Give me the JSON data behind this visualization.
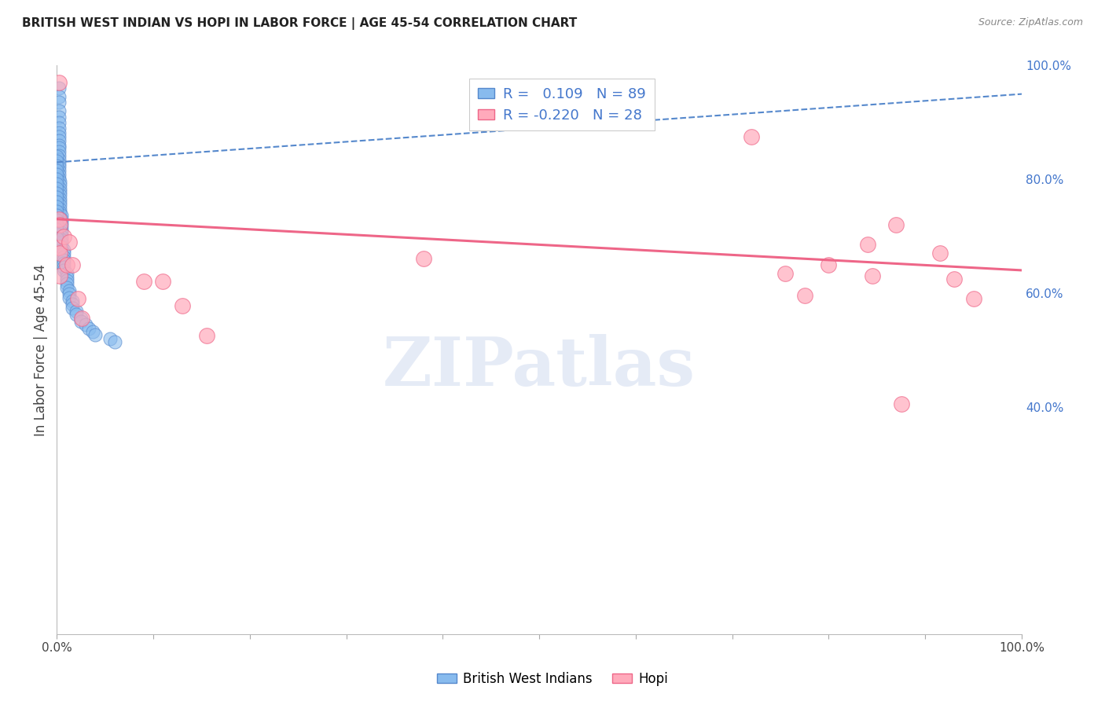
{
  "title": "BRITISH WEST INDIAN VS HOPI IN LABOR FORCE | AGE 45-54 CORRELATION CHART",
  "source": "Source: ZipAtlas.com",
  "ylabel": "In Labor Force | Age 45-54",
  "xlim": [
    0.0,
    1.0
  ],
  "ylim": [
    0.0,
    1.0
  ],
  "x_ticks": [
    0.0,
    0.1,
    0.2,
    0.3,
    0.4,
    0.5,
    0.6,
    0.7,
    0.8,
    0.9,
    1.0
  ],
  "y_ticks": [
    0.0,
    0.1,
    0.2,
    0.3,
    0.4,
    0.5,
    0.6,
    0.7,
    0.8,
    0.9,
    1.0
  ],
  "x_tick_labels": [
    "0.0%",
    "",
    "",
    "",
    "",
    "",
    "",
    "",
    "",
    "",
    "100.0%"
  ],
  "y_tick_labels_right": [
    "",
    "",
    "",
    "",
    "40.0%",
    "",
    "60.0%",
    "",
    "80.0%",
    "",
    "100.0%"
  ],
  "blue_color": "#88BBEE",
  "pink_color": "#FFAABB",
  "blue_edge_color": "#5588CC",
  "pink_edge_color": "#EE6688",
  "blue_line_color": "#5588CC",
  "pink_line_color": "#EE6688",
  "legend_R_blue": " 0.109",
  "legend_N_blue": "89",
  "legend_R_pink": "-0.220",
  "legend_N_pink": "28",
  "legend_label_blue": "British West Indians",
  "legend_label_pink": "Hopi",
  "watermark": "ZIPatlas",
  "blue_scatter_x": [
    0.002,
    0.002,
    0.002,
    0.002,
    0.002,
    0.002,
    0.002,
    0.002,
    0.002,
    0.002,
    0.002,
    0.002,
    0.002,
    0.002,
    0.002,
    0.002,
    0.002,
    0.002,
    0.002,
    0.002,
    0.003,
    0.003,
    0.003,
    0.003,
    0.003,
    0.003,
    0.003,
    0.003,
    0.003,
    0.003,
    0.005,
    0.005,
    0.005,
    0.005,
    0.005,
    0.005,
    0.005,
    0.005,
    0.005,
    0.005,
    0.007,
    0.007,
    0.007,
    0.007,
    0.007,
    0.007,
    0.007,
    0.01,
    0.01,
    0.01,
    0.01,
    0.01,
    0.013,
    0.013,
    0.013,
    0.016,
    0.016,
    0.016,
    0.02,
    0.02,
    0.025,
    0.025,
    0.03,
    0.033,
    0.037,
    0.04,
    0.055,
    0.06,
    0.0,
    0.0,
    0.0,
    0.0,
    0.0,
    0.0,
    0.0,
    0.0,
    0.0,
    0.0,
    0.0,
    0.0,
    0.0,
    0.0,
    0.0,
    0.0,
    0.0,
    0.0,
    0.0
  ],
  "blue_scatter_y": [
    0.96,
    0.945,
    0.935,
    0.92,
    0.91,
    0.9,
    0.89,
    0.882,
    0.875,
    0.868,
    0.86,
    0.855,
    0.848,
    0.842,
    0.835,
    0.828,
    0.822,
    0.815,
    0.808,
    0.802,
    0.796,
    0.79,
    0.783,
    0.778,
    0.772,
    0.766,
    0.76,
    0.754,
    0.748,
    0.742,
    0.736,
    0.73,
    0.724,
    0.718,
    0.712,
    0.706,
    0.7,
    0.694,
    0.688,
    0.682,
    0.676,
    0.67,
    0.664,
    0.658,
    0.652,
    0.646,
    0.64,
    0.634,
    0.628,
    0.622,
    0.616,
    0.61,
    0.604,
    0.598,
    0.592,
    0.586,
    0.58,
    0.574,
    0.568,
    0.562,
    0.556,
    0.55,
    0.544,
    0.538,
    0.532,
    0.526,
    0.52,
    0.514,
    0.84,
    0.832,
    0.824,
    0.816,
    0.808,
    0.8,
    0.792,
    0.784,
    0.776,
    0.768,
    0.76,
    0.752,
    0.744,
    0.736,
    0.728,
    0.72,
    0.712,
    0.704,
    0.696
  ],
  "pink_scatter_x": [
    0.002,
    0.002,
    0.002,
    0.003,
    0.003,
    0.003,
    0.007,
    0.01,
    0.013,
    0.016,
    0.022,
    0.026,
    0.09,
    0.11,
    0.13,
    0.155,
    0.38,
    0.72,
    0.755,
    0.775,
    0.8,
    0.84,
    0.845,
    0.87,
    0.875,
    0.915,
    0.93,
    0.95
  ],
  "pink_scatter_y": [
    0.97,
    0.73,
    0.68,
    0.72,
    0.67,
    0.63,
    0.7,
    0.65,
    0.69,
    0.65,
    0.59,
    0.555,
    0.62,
    0.62,
    0.578,
    0.525,
    0.66,
    0.875,
    0.635,
    0.595,
    0.65,
    0.685,
    0.63,
    0.72,
    0.405,
    0.67,
    0.625,
    0.59
  ],
  "blue_trend_x": [
    0.0,
    1.0
  ],
  "blue_trend_y": [
    0.83,
    0.95
  ],
  "pink_trend_x": [
    0.0,
    1.0
  ],
  "pink_trend_y": [
    0.73,
    0.64
  ],
  "background_color": "#ffffff",
  "grid_color": "#cccccc",
  "right_tick_color": "#4477CC"
}
